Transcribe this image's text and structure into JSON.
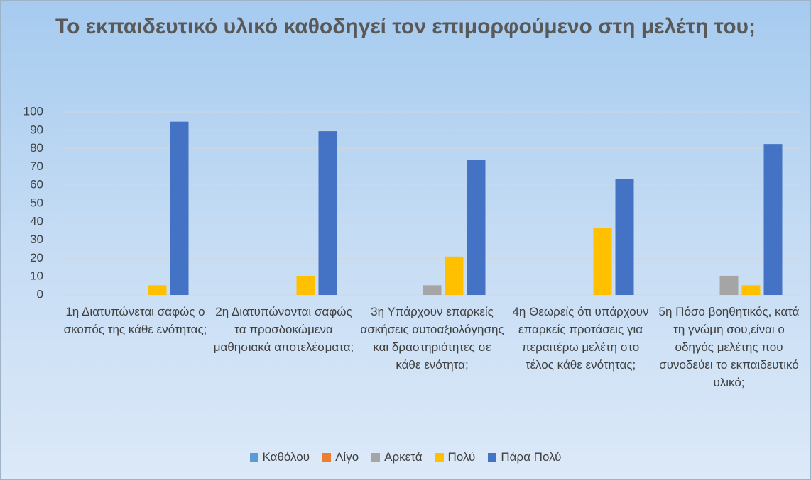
{
  "chart_data": {
    "type": "bar",
    "title": "Το εκπαιδευτικό υλικό καθοδηγεί τον επιμορφούμενο στη μελέτη του;",
    "categories": [
      "1η  Διατυπώνεται σαφώς ο σκοπός της κάθε ενότητας;",
      "2η Διατυπώνονται σαφώς τα προσδοκώμενα μαθησιακά αποτελέσματα;",
      "3η Υπάρχουν επαρκείς ασκήσεις αυτοαξιολόγησης και δραστηριότητες σε κάθε ενότητα;",
      "4η Θεωρείς ότι υπάρχουν επαρκείς προτάσεις για περαιτέρω μελέτη στο τέλος κάθε ενότητας;",
      "5η Πόσο βοηθητικός, κατά τη γνώμη σου,είναι ο οδηγός μελέτης που συνοδεύει το εκπαιδευτικό υλικό;"
    ],
    "series": [
      {
        "name": "Καθόλου",
        "color": "#5b9bd5",
        "values": [
          0,
          0,
          0,
          0,
          0
        ]
      },
      {
        "name": "Λίγο",
        "color": "#ed7d31",
        "values": [
          0,
          0,
          0,
          0,
          0
        ]
      },
      {
        "name": "Αρκετά",
        "color": "#a5a5a5",
        "values": [
          0,
          0,
          5.3,
          0,
          10.5
        ]
      },
      {
        "name": "Πολύ",
        "color": "#ffc000",
        "values": [
          5.3,
          10.5,
          21,
          36.8,
          5.3
        ]
      },
      {
        "name": "Πάρα Πολύ",
        "color": "#4472c4",
        "values": [
          94.7,
          89.5,
          73.7,
          63.2,
          82.5
        ]
      }
    ],
    "ylim": [
      0,
      100
    ],
    "yticks": [
      0,
      10,
      20,
      30,
      40,
      50,
      60,
      70,
      80,
      90,
      100
    ],
    "grid": true,
    "legend": "bottom"
  }
}
